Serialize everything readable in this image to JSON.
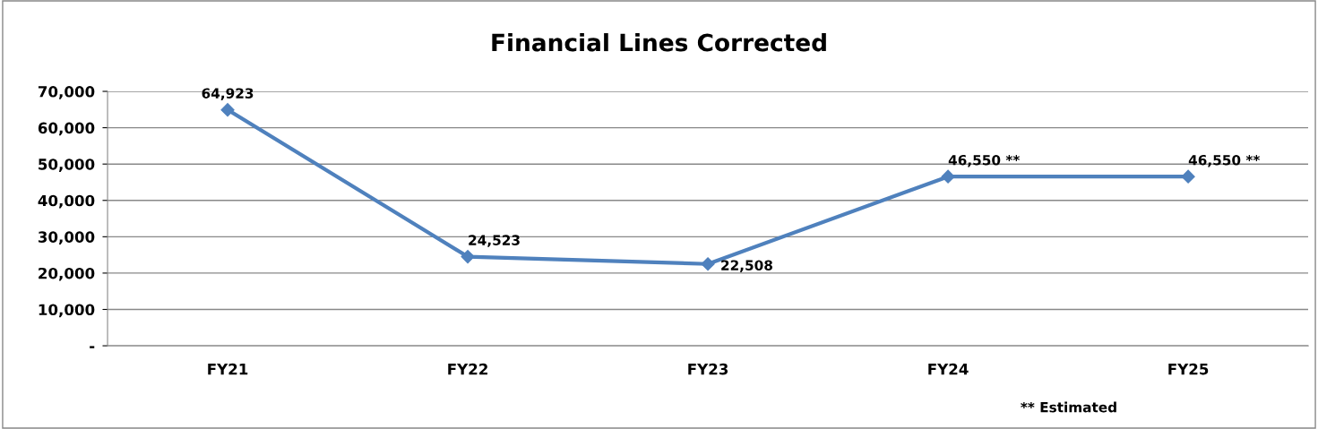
{
  "chart_data": {
    "type": "line",
    "title": "Financial Lines Corrected",
    "categories": [
      "FY21",
      "FY22",
      "FY23",
      "FY24",
      "FY25"
    ],
    "series": [
      {
        "color": "#4f81bd",
        "values": [
          64923,
          24523,
          22508,
          46550,
          46550
        ],
        "value_labels": [
          "64,923",
          "24,523",
          "22,508",
          "46,550 **",
          "46,550 **"
        ]
      }
    ],
    "ylim": [
      0,
      70000
    ],
    "yticks": [
      {
        "value": 0,
        "label": "-"
      },
      {
        "value": 10000,
        "label": "10,000"
      },
      {
        "value": 20000,
        "label": "20,000"
      },
      {
        "value": 30000,
        "label": "30,000"
      },
      {
        "value": 40000,
        "label": "40,000"
      },
      {
        "value": 50000,
        "label": "50,000"
      },
      {
        "value": 60000,
        "label": "60,000"
      },
      {
        "value": 70000,
        "label": "70,000"
      }
    ],
    "grid": "y",
    "legend": false,
    "marker": "diamond",
    "line_style": "solid",
    "annotations": [
      "** Estimated"
    ]
  }
}
